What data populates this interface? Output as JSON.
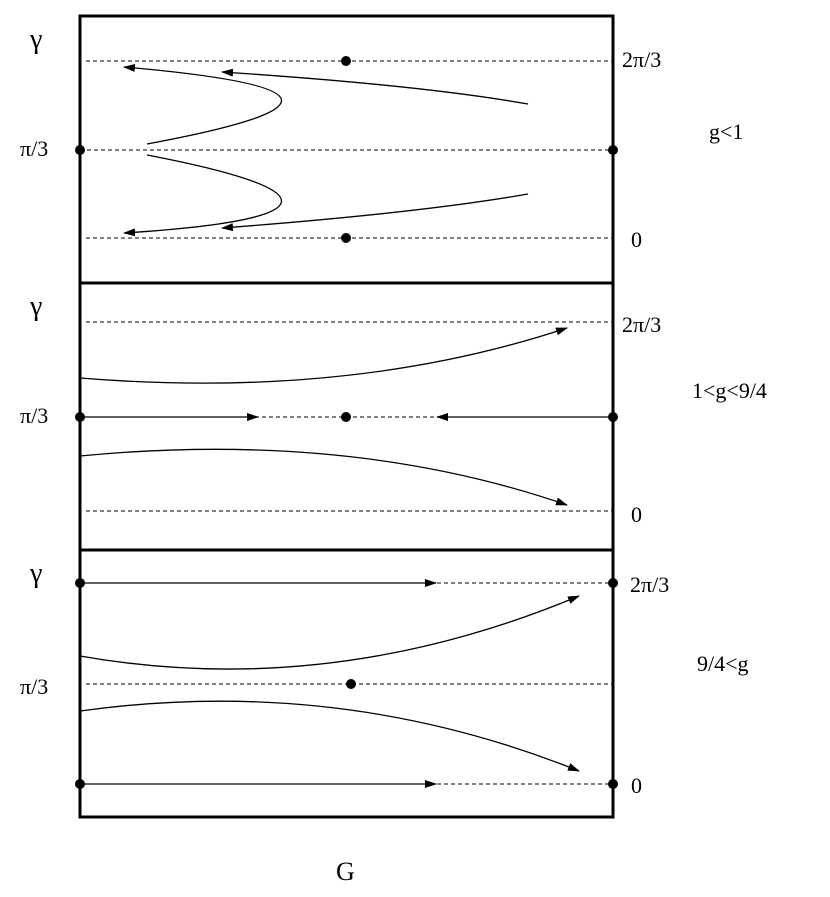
{
  "axis": {
    "y_symbol": "γ",
    "x_label": "G"
  },
  "panels": [
    {
      "condition": "g<1",
      "left_tick": "π/3",
      "right_top_tick": "2π/3",
      "right_bottom_tick": "0"
    },
    {
      "condition": "1<g<9/4",
      "left_tick": "π/3",
      "right_top_tick": "2π/3",
      "right_bottom_tick": "0"
    },
    {
      "condition": "9/4<g",
      "left_tick": "π/3",
      "right_top_tick": "2π/3",
      "right_bottom_tick": "0"
    }
  ],
  "colors": {
    "ink": "#000000",
    "background": "#ffffff"
  }
}
